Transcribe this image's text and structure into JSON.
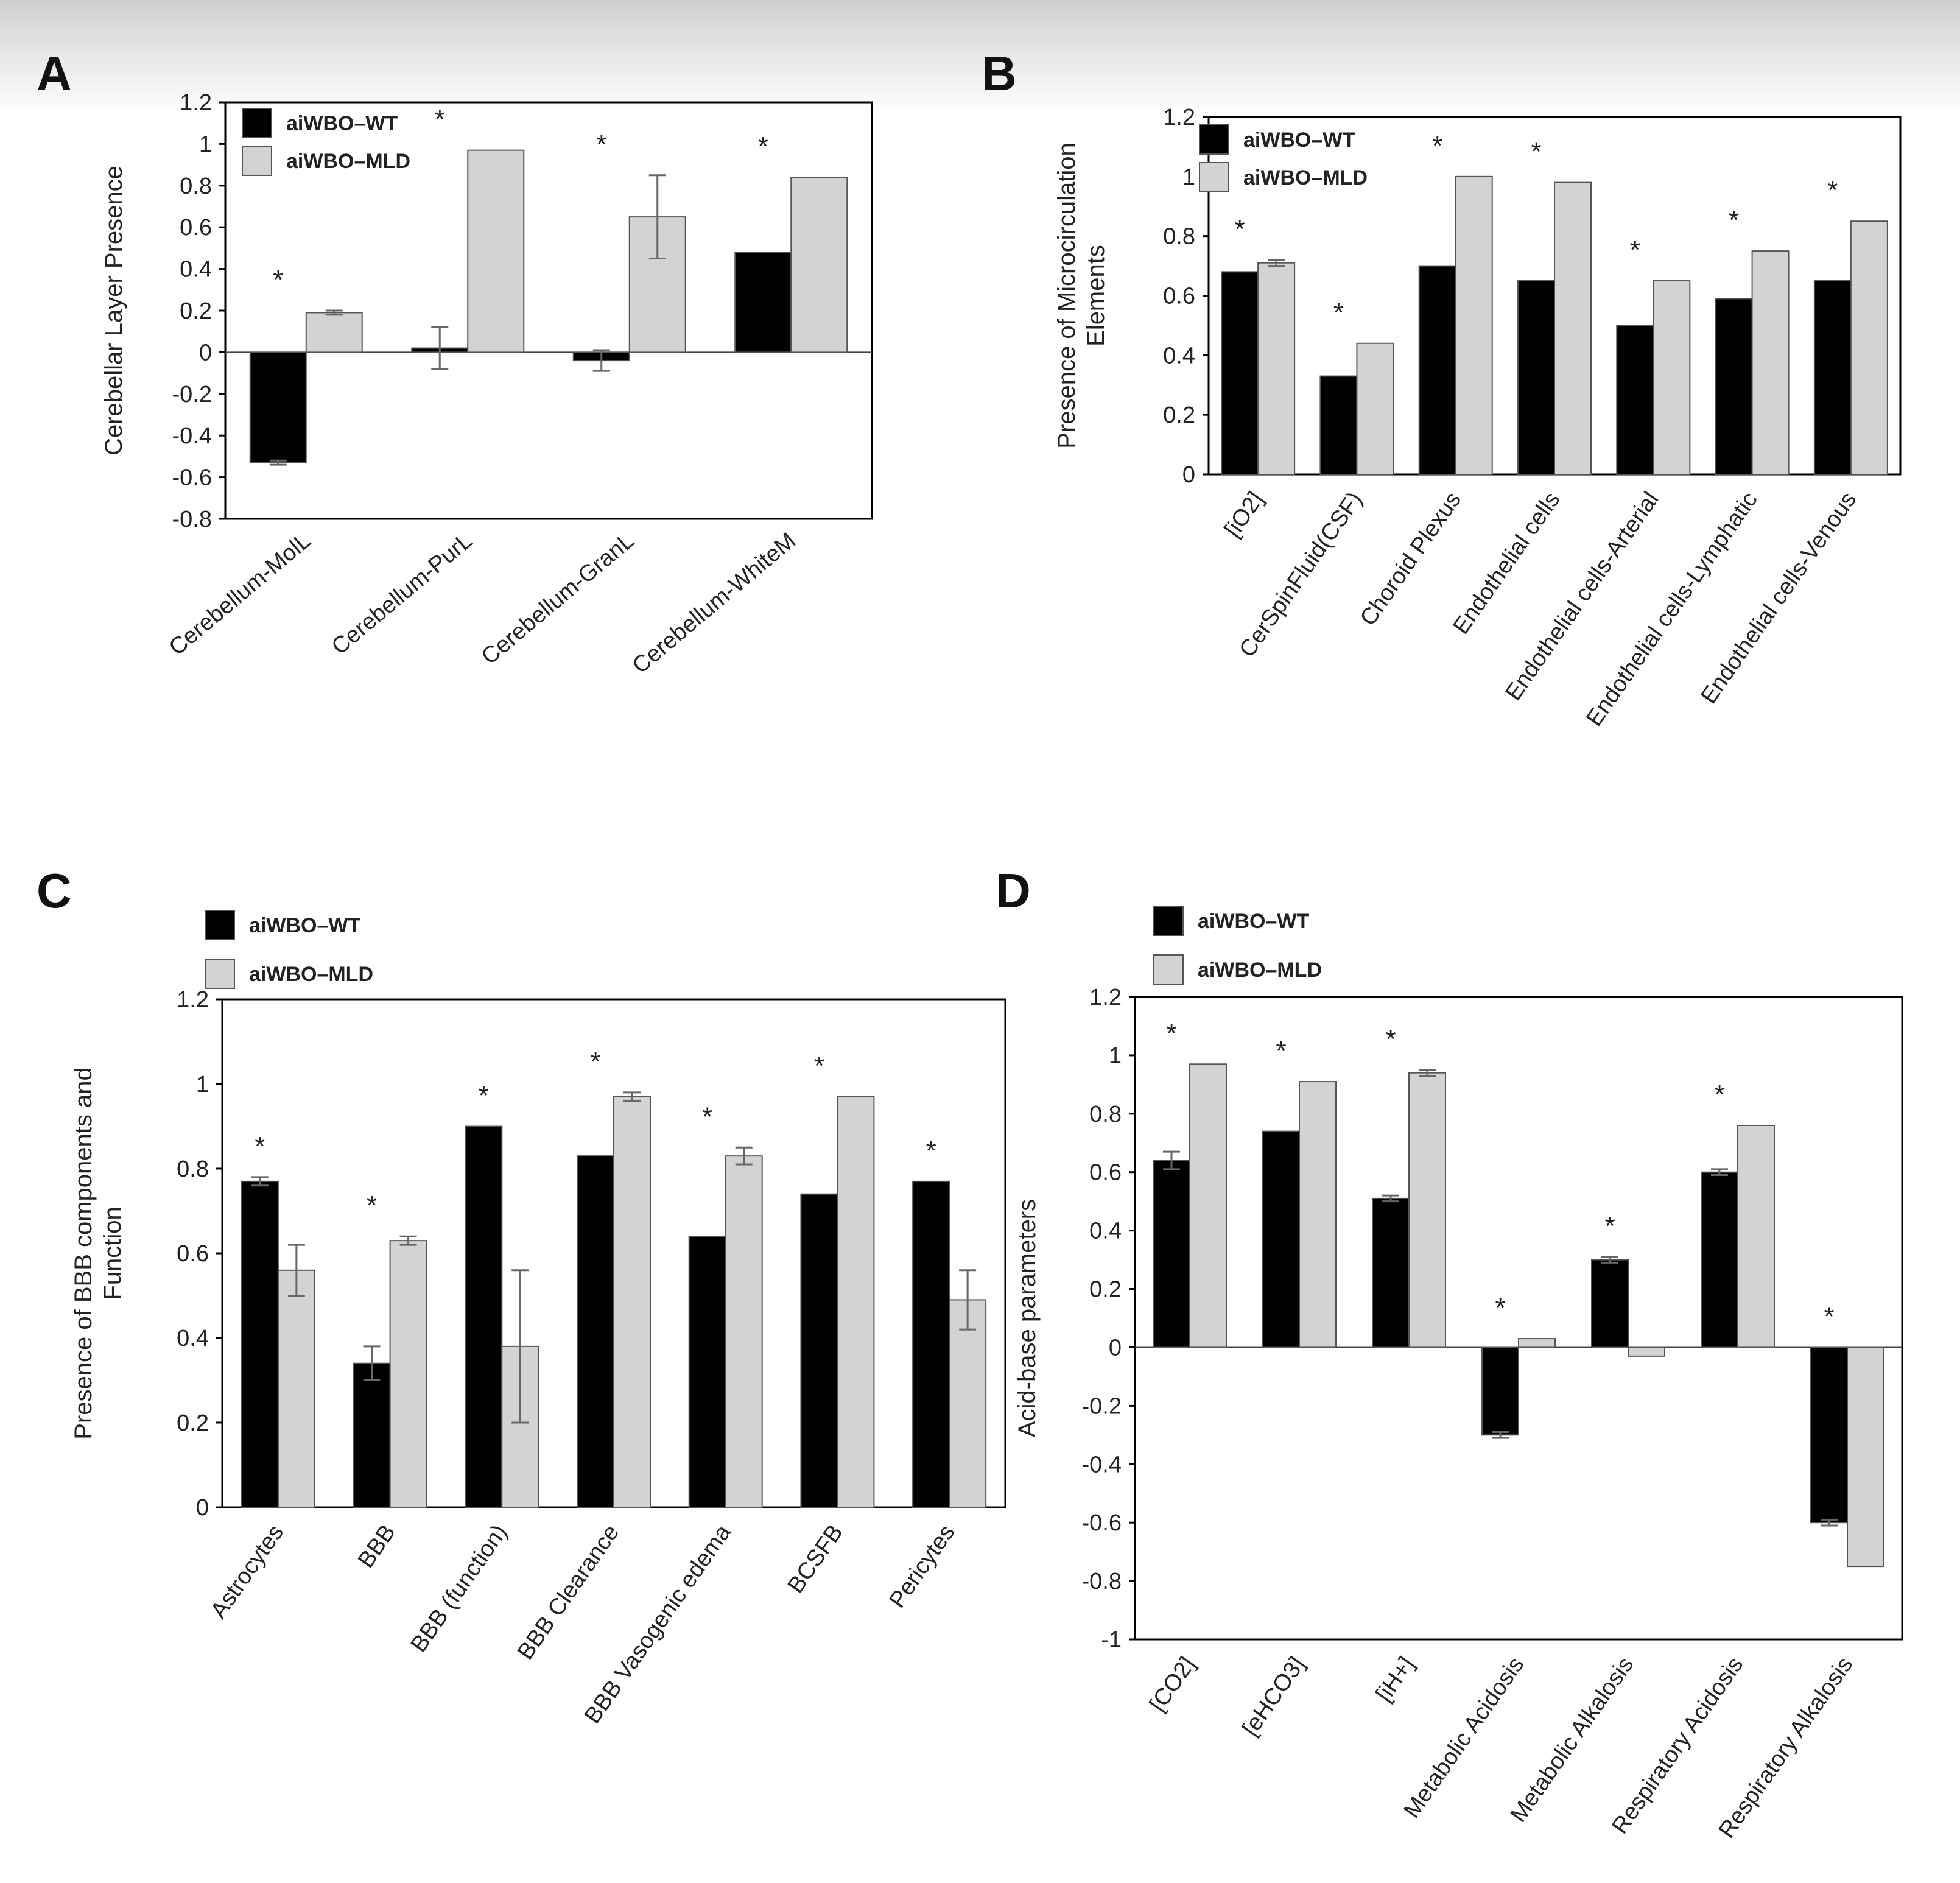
{
  "figure": {
    "colors": {
      "wt": "#000000",
      "mld": "#d3d3d3",
      "edge": "#555555",
      "axis": "#000000",
      "error": "#666666"
    }
  },
  "chart_data": [
    {
      "panel": "A",
      "type": "bar",
      "ylabel": "Cerebellar Layer Presence",
      "ylim": [
        -0.8,
        1.2
      ],
      "yticks": [
        "-0.8",
        "-0.6",
        "-0.4",
        "-0.2",
        "0",
        "0.2",
        "0.4",
        "0.6",
        "0.8",
        "1",
        "1.2"
      ],
      "legend": {
        "placement": "top-left",
        "labels": [
          "aiWBO–WT",
          "aiWBO–MLD"
        ]
      },
      "categories": [
        "Cerebellum-MolL",
        "Cerebellum-PurL",
        "Cerebellum-GranL",
        "Cerebellum-WhiteM"
      ],
      "series": [
        {
          "name": "aiWBO–WT",
          "values": [
            -0.53,
            0.02,
            -0.04,
            0.48
          ],
          "errors": [
            0.01,
            0.1,
            0.05,
            0.0
          ]
        },
        {
          "name": "aiWBO–MLD",
          "values": [
            0.19,
            0.97,
            0.65,
            0.84
          ],
          "errors": [
            0.01,
            0.0,
            0.2,
            0.0
          ]
        }
      ],
      "stars": [
        "*",
        "*",
        "*",
        "*"
      ]
    },
    {
      "panel": "B",
      "type": "bar",
      "ylabel": [
        "Presence of Microcirculation",
        "Elements"
      ],
      "ylim": [
        0,
        1.2
      ],
      "yticks": [
        "0",
        "0.2",
        "0.4",
        "0.6",
        "0.8",
        "1",
        "1.2"
      ],
      "legend": {
        "placement": "top-left",
        "labels": [
          "aiWBO–WT",
          "aiWBO–MLD"
        ]
      },
      "categories": [
        "[iO2]",
        "CerSpinFluid(CSF)",
        "Choroid Plexus",
        "Endothelial cells",
        "Endothelial cells-Arterial",
        "Endothelial cells-Lymphatic",
        "Endothelial cells-Venous"
      ],
      "series": [
        {
          "name": "aiWBO–WT",
          "values": [
            0.68,
            0.33,
            0.7,
            0.65,
            0.5,
            0.59,
            0.65
          ],
          "errors": [
            0,
            0,
            0,
            0,
            0,
            0,
            0
          ]
        },
        {
          "name": "aiWBO–MLD",
          "values": [
            0.71,
            0.44,
            1.0,
            0.98,
            0.65,
            0.75,
            0.85
          ],
          "errors": [
            0.01,
            0,
            0,
            0,
            0,
            0,
            0
          ]
        }
      ],
      "stars": [
        "*",
        "*",
        "*",
        "*",
        "*",
        "*",
        "*"
      ]
    },
    {
      "panel": "C",
      "type": "bar",
      "ylabel": [
        "Presence of BBB components and",
        "Function"
      ],
      "ylim": [
        0,
        1.2
      ],
      "yticks": [
        "0",
        "0.2",
        "0.4",
        "0.6",
        "0.8",
        "1",
        "1.2"
      ],
      "legend": {
        "placement": "top-left",
        "labels": [
          "aiWBO–WT",
          "aiWBO–MLD"
        ]
      },
      "categories": [
        "Astrocytes",
        "BBB",
        "BBB (function)",
        "BBB Clearance",
        "BBB Vasogenic edema",
        "BCSFB",
        "Pericytes"
      ],
      "series": [
        {
          "name": "aiWBO–WT",
          "values": [
            0.77,
            0.34,
            0.9,
            0.83,
            0.64,
            0.74,
            0.77
          ],
          "errors": [
            0.01,
            0.04,
            0,
            0,
            0,
            0,
            0
          ]
        },
        {
          "name": "aiWBO–MLD",
          "values": [
            0.56,
            0.63,
            0.38,
            0.97,
            0.83,
            0.97,
            0.49
          ],
          "errors": [
            0.06,
            0.01,
            0.18,
            0.01,
            0.02,
            0,
            0.07
          ]
        }
      ],
      "stars": [
        "*",
        "*",
        "*",
        "*",
        "*",
        "*",
        "*"
      ]
    },
    {
      "panel": "D",
      "type": "bar",
      "ylabel": "Acid-base parameters",
      "ylim": [
        -1,
        1.2
      ],
      "yticks": [
        "-1",
        "-0.8",
        "-0.6",
        "-0.4",
        "-0.2",
        "0",
        "0.2",
        "0.4",
        "0.6",
        "0.8",
        "1",
        "1.2"
      ],
      "legend": {
        "placement": "top-left",
        "labels": [
          "aiWBO–WT",
          "aiWBO–MLD"
        ]
      },
      "categories": [
        "[CO2]",
        "[eHCO3]",
        "[iH+]",
        "Metabolic Acidosis",
        "Metabolic Alkalosis",
        "Respiratory Acidosis",
        "Respiratory Alkalosis"
      ],
      "series": [
        {
          "name": "aiWBO–WT",
          "values": [
            0.64,
            0.74,
            0.51,
            -0.3,
            0.3,
            0.6,
            -0.6
          ],
          "errors": [
            0.03,
            0,
            0.01,
            0.01,
            0.01,
            0.01,
            0.01
          ]
        },
        {
          "name": "aiWBO–MLD",
          "values": [
            0.97,
            0.91,
            0.94,
            0.03,
            -0.03,
            0.76,
            -0.75
          ],
          "errors": [
            0,
            0,
            0.01,
            0,
            0,
            0,
            0
          ]
        }
      ],
      "stars": [
        "*",
        "*",
        "*",
        "*",
        "*",
        "*",
        "*"
      ]
    }
  ]
}
